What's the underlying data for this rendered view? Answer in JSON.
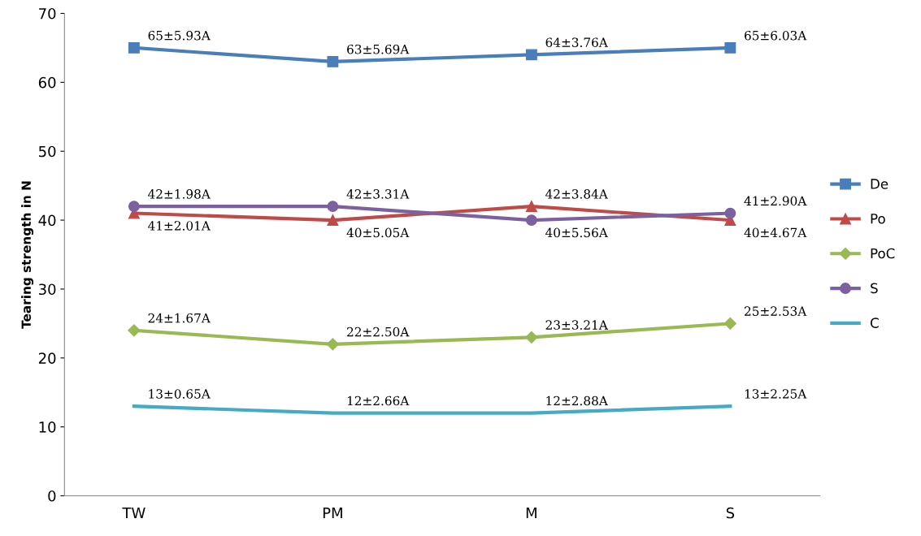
{
  "chart_data": {
    "type": "line",
    "ylabel": "Tearing strength in N",
    "categories": [
      "TW",
      "PM",
      "M",
      "S"
    ],
    "ylim": [
      0,
      70
    ],
    "yticks": [
      0,
      10,
      20,
      30,
      40,
      50,
      60,
      70
    ],
    "grid": false,
    "legend": "right",
    "series": [
      {
        "name": "De",
        "color": "#4a7ebb",
        "marker": "square",
        "values": [
          65,
          63,
          64,
          65
        ],
        "value_labels": [
          "65±5.93A",
          "63±5.69A",
          "64±3.76A",
          "65±6.03A"
        ]
      },
      {
        "name": "Po",
        "color": "#be4b48",
        "marker": "triangle",
        "values": [
          41,
          40,
          42,
          40
        ],
        "value_labels": [
          "41±2.01A",
          "40±5.05A",
          "42±3.84A",
          "40±4.67A"
        ]
      },
      {
        "name": "PoC",
        "color": "#98b954",
        "marker": "diamond",
        "values": [
          24,
          22,
          23,
          25
        ],
        "value_labels": [
          "24±1.67A",
          "22±2.50A",
          "23±3.21A",
          "25±2.53A"
        ]
      },
      {
        "name": "S",
        "color": "#7d60a0",
        "marker": "circle",
        "values": [
          42,
          42,
          40,
          41
        ],
        "value_labels": [
          "42±1.98A",
          "42±3.31A",
          "40±5.56A",
          "41±2.90A"
        ]
      },
      {
        "name": "C",
        "color": "#46aac5",
        "marker": "none",
        "values": [
          13,
          12,
          12,
          13
        ],
        "value_labels": [
          "13±0.65A",
          "12±2.66A",
          "12±2.88A",
          "13±2.25A"
        ]
      }
    ]
  }
}
